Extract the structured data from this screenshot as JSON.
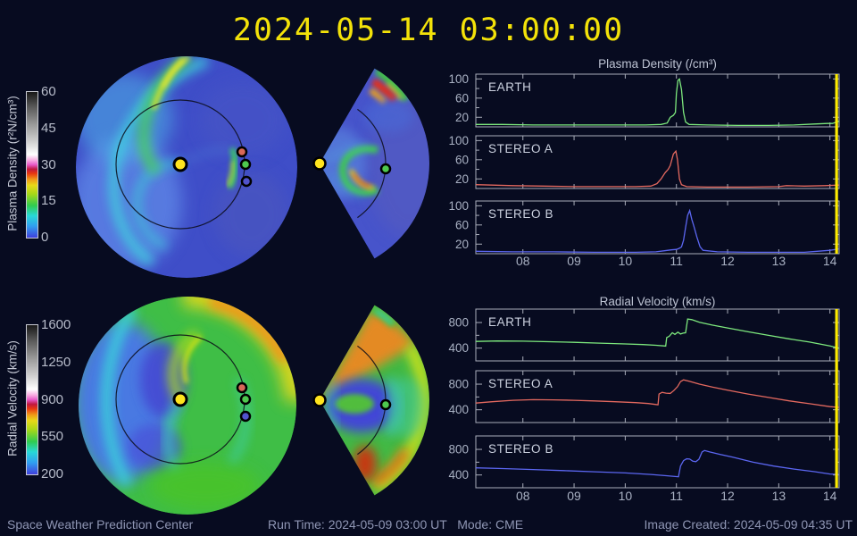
{
  "page": {
    "title": "2024-05-14 03:00:00",
    "title_color": "#f3e209",
    "background": "#070b20"
  },
  "footer": {
    "left": "Space Weather Prediction Center",
    "center": "Run Time: 2024-05-09 03:00 UT   Mode: CME",
    "right": "Image Created: 2024-05-09 04:35 UT"
  },
  "colorbars": [
    {
      "label": "Plasma Density (r²N/cm³)",
      "ticks": [
        "60",
        "45",
        "30",
        "15",
        "0"
      ]
    },
    {
      "label": "Radial Velocity (km/s)",
      "ticks": [
        "1600",
        "1250",
        "900",
        "550",
        "200"
      ]
    }
  ],
  "maps": {
    "sun_color": "#ffe41e",
    "markers": [
      {
        "name": "STEREO A",
        "color": "#d86858"
      },
      {
        "name": "EARTH",
        "color": "#4ec84e"
      },
      {
        "name": "STEREO B",
        "color": "#5153cc"
      }
    ],
    "palette": {
      "density_base": "#3f4ec8",
      "velocity_base": "#3fbe46",
      "density_wedge_base": "#4754cb",
      "velocity_wedge_base": "#43b944"
    }
  },
  "chart_data": [
    {
      "type": "line",
      "id": "chart-density",
      "title": "Plasma Density (/cm³)",
      "x": {
        "range": [
          7.08,
          14.18
        ],
        "ticks": [
          8,
          9,
          10,
          11,
          12,
          13,
          14
        ],
        "labels": [
          "08",
          "09",
          "10",
          "11",
          "12",
          "13",
          "14"
        ]
      },
      "y": {
        "range": [
          0,
          110
        ],
        "major": [
          20,
          60,
          100
        ],
        "minor": [
          40,
          80
        ]
      },
      "now_marker_x": 14.13,
      "now_color": "#ffec00",
      "series": [
        {
          "name": "EARTH",
          "color": "#7de87d",
          "points": [
            [
              7.08,
              5
            ],
            [
              7.6,
              5
            ],
            [
              8.2,
              4
            ],
            [
              9,
              4
            ],
            [
              9.8,
              4
            ],
            [
              10.4,
              4
            ],
            [
              10.7,
              5
            ],
            [
              10.82,
              8
            ],
            [
              10.88,
              20
            ],
            [
              10.94,
              24
            ],
            [
              10.98,
              30
            ],
            [
              11.0,
              70
            ],
            [
              11.03,
              97
            ],
            [
              11.06,
              100
            ],
            [
              11.1,
              78
            ],
            [
              11.14,
              30
            ],
            [
              11.18,
              10
            ],
            [
              11.25,
              5
            ],
            [
              11.6,
              4
            ],
            [
              12.2,
              3
            ],
            [
              12.8,
              3
            ],
            [
              13.3,
              4
            ],
            [
              13.7,
              6
            ],
            [
              13.95,
              7
            ],
            [
              14.05,
              7
            ],
            [
              14.18,
              12
            ]
          ]
        },
        {
          "name": "STEREO A",
          "color": "#e4695f",
          "points": [
            [
              7.08,
              8
            ],
            [
              7.4,
              7
            ],
            [
              7.8,
              6
            ],
            [
              8.4,
              5
            ],
            [
              9,
              4
            ],
            [
              9.6,
              4
            ],
            [
              10.2,
              4
            ],
            [
              10.5,
              5
            ],
            [
              10.62,
              10
            ],
            [
              10.7,
              20
            ],
            [
              10.78,
              33
            ],
            [
              10.84,
              40
            ],
            [
              10.88,
              48
            ],
            [
              10.94,
              72
            ],
            [
              10.99,
              78
            ],
            [
              11.02,
              60
            ],
            [
              11.06,
              20
            ],
            [
              11.1,
              8
            ],
            [
              11.2,
              4
            ],
            [
              11.6,
              3
            ],
            [
              12.4,
              3
            ],
            [
              13.0,
              4
            ],
            [
              13.15,
              6
            ],
            [
              13.5,
              5
            ],
            [
              13.9,
              6
            ],
            [
              14.18,
              7
            ]
          ]
        },
        {
          "name": "STEREO B",
          "color": "#5b66f0",
          "points": [
            [
              7.08,
              5
            ],
            [
              7.8,
              4
            ],
            [
              8.6,
              4
            ],
            [
              9.4,
              3
            ],
            [
              10.2,
              3
            ],
            [
              10.6,
              4
            ],
            [
              10.75,
              6
            ],
            [
              10.9,
              8
            ],
            [
              11.0,
              9
            ],
            [
              11.05,
              11
            ],
            [
              11.1,
              14
            ],
            [
              11.14,
              28
            ],
            [
              11.18,
              55
            ],
            [
              11.22,
              80
            ],
            [
              11.26,
              90
            ],
            [
              11.3,
              72
            ],
            [
              11.34,
              58
            ],
            [
              11.4,
              35
            ],
            [
              11.46,
              15
            ],
            [
              11.52,
              7
            ],
            [
              11.8,
              4
            ],
            [
              12.4,
              3
            ],
            [
              13.0,
              3
            ],
            [
              13.5,
              3
            ],
            [
              13.75,
              5
            ],
            [
              14.0,
              7
            ],
            [
              14.18,
              10
            ]
          ]
        }
      ]
    },
    {
      "type": "line",
      "id": "chart-velocity",
      "title": "Radial Velocity (km/s)",
      "x": {
        "range": [
          7.08,
          14.18
        ],
        "ticks": [
          8,
          9,
          10,
          11,
          12,
          13,
          14
        ],
        "labels": [
          "08",
          "09",
          "10",
          "11",
          "12",
          "13",
          "14"
        ]
      },
      "y": {
        "range": [
          200,
          1010
        ],
        "major": [
          400,
          800
        ],
        "minor": [
          600,
          1000
        ]
      },
      "now_marker_x": 14.13,
      "now_color": "#ffec00",
      "series": [
        {
          "name": "EARTH",
          "color": "#7de87d",
          "points": [
            [
              7.08,
              505
            ],
            [
              7.5,
              512
            ],
            [
              8,
              508
            ],
            [
              8.5,
              500
            ],
            [
              9,
              490
            ],
            [
              9.5,
              478
            ],
            [
              10,
              465
            ],
            [
              10.35,
              455
            ],
            [
              10.6,
              445
            ],
            [
              10.75,
              435
            ],
            [
              10.79,
              432
            ],
            [
              10.81,
              565
            ],
            [
              10.86,
              585
            ],
            [
              10.92,
              640
            ],
            [
              10.97,
              615
            ],
            [
              11.03,
              650
            ],
            [
              11.08,
              620
            ],
            [
              11.13,
              635
            ],
            [
              11.18,
              640
            ],
            [
              11.22,
              855
            ],
            [
              11.3,
              845
            ],
            [
              11.45,
              805
            ],
            [
              11.7,
              760
            ],
            [
              12,
              715
            ],
            [
              12.4,
              655
            ],
            [
              12.8,
              600
            ],
            [
              13.2,
              545
            ],
            [
              13.6,
              495
            ],
            [
              14,
              435
            ],
            [
              14.18,
              400
            ]
          ]
        },
        {
          "name": "STEREO A",
          "color": "#e4695f",
          "points": [
            [
              7.08,
              505
            ],
            [
              7.4,
              525
            ],
            [
              7.8,
              548
            ],
            [
              8.2,
              558
            ],
            [
              8.6,
              555
            ],
            [
              9,
              548
            ],
            [
              9.4,
              538
            ],
            [
              9.8,
              525
            ],
            [
              10.2,
              512
            ],
            [
              10.45,
              498
            ],
            [
              10.6,
              482
            ],
            [
              10.64,
              478
            ],
            [
              10.66,
              645
            ],
            [
              10.72,
              672
            ],
            [
              10.8,
              660
            ],
            [
              10.88,
              655
            ],
            [
              10.95,
              700
            ],
            [
              11.02,
              760
            ],
            [
              11.08,
              840
            ],
            [
              11.14,
              868
            ],
            [
              11.25,
              845
            ],
            [
              11.45,
              800
            ],
            [
              11.7,
              755
            ],
            [
              12,
              705
            ],
            [
              12.4,
              645
            ],
            [
              12.8,
              592
            ],
            [
              13.2,
              540
            ],
            [
              13.6,
              495
            ],
            [
              14,
              448
            ],
            [
              14.18,
              438
            ]
          ]
        },
        {
          "name": "STEREO B",
          "color": "#5b66f0",
          "points": [
            [
              7.08,
              512
            ],
            [
              7.6,
              500
            ],
            [
              8.2,
              485
            ],
            [
              8.8,
              468
            ],
            [
              9.4,
              450
            ],
            [
              10,
              432
            ],
            [
              10.5,
              408
            ],
            [
              10.8,
              388
            ],
            [
              11,
              374
            ],
            [
              11.04,
              372
            ],
            [
              11.08,
              540
            ],
            [
              11.14,
              625
            ],
            [
              11.2,
              652
            ],
            [
              11.26,
              648
            ],
            [
              11.32,
              615
            ],
            [
              11.38,
              608
            ],
            [
              11.44,
              645
            ],
            [
              11.5,
              758
            ],
            [
              11.55,
              782
            ],
            [
              11.65,
              760
            ],
            [
              11.85,
              722
            ],
            [
              12.1,
              678
            ],
            [
              12.5,
              600
            ],
            [
              12.9,
              540
            ],
            [
              13.3,
              492
            ],
            [
              13.7,
              452
            ],
            [
              14,
              415
            ],
            [
              14.18,
              408
            ]
          ]
        }
      ]
    }
  ]
}
